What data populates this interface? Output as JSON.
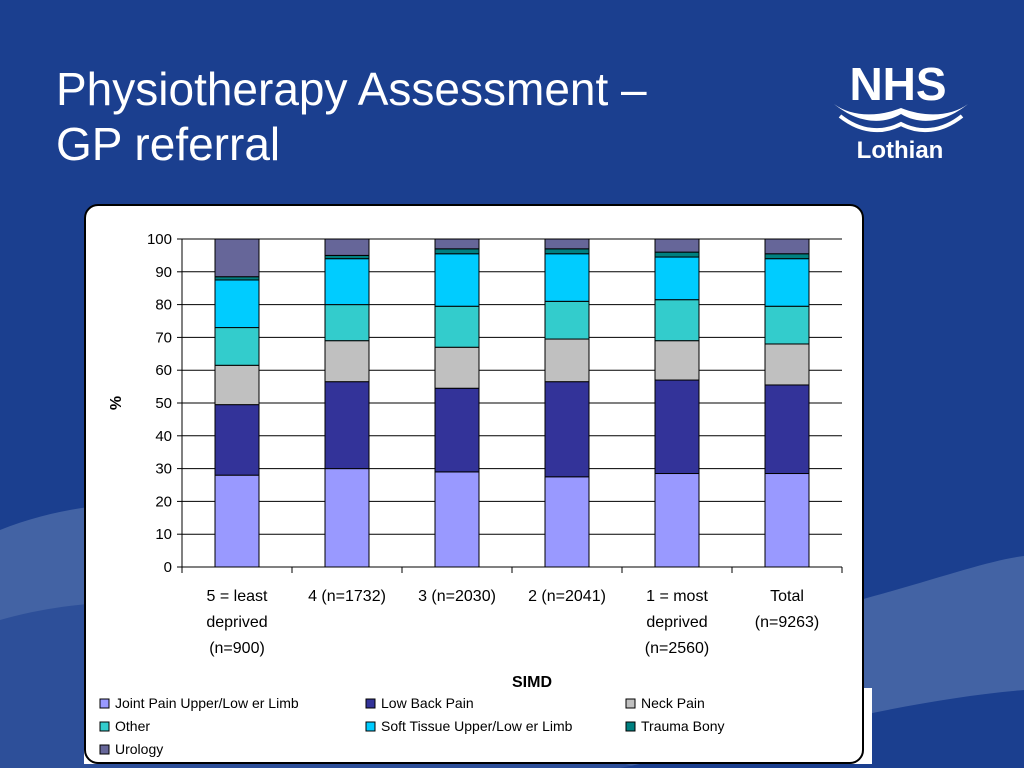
{
  "title_lines": [
    "Physiotherapy Assessment –",
    "GP referral"
  ],
  "logo": {
    "brand": "NHS",
    "sub": "Lothian"
  },
  "colors": {
    "background": "#1b3f8f",
    "wave": "#4a6aa8",
    "Joint Pain Upper/Low er Limb": "#9999ff",
    "Low  Back Pain": "#333399",
    "Neck Pain": "#c0c0c0",
    "Other": "#33cccc",
    "Soft Tissue Upper/Low er Limb": "#00ccff",
    "Trauma Bony": "#008080",
    "Urology": "#666699"
  },
  "chart_data": {
    "type": "bar",
    "stacked": true,
    "xlabel": "SIMD",
    "ylabel": "%",
    "ylim": [
      0,
      100
    ],
    "yticks": [
      0,
      10,
      20,
      30,
      40,
      50,
      60,
      70,
      80,
      90,
      100
    ],
    "grid": true,
    "legend_position": "bottom",
    "categories": [
      [
        "5 = least",
        "deprived",
        "(n=900)"
      ],
      [
        "4 (n=1732)"
      ],
      [
        "3 (n=2030)"
      ],
      [
        "2 (n=2041)"
      ],
      [
        "1 = most",
        "deprived",
        "(n=2560)"
      ],
      [
        "Total",
        "(n=9263)"
      ]
    ],
    "series": [
      {
        "name": "Joint Pain Upper/Low er Limb",
        "values": [
          28,
          30,
          29,
          27.5,
          28.5,
          28.5
        ]
      },
      {
        "name": "Low  Back Pain",
        "values": [
          21.5,
          26.5,
          25.5,
          29,
          28.5,
          27
        ]
      },
      {
        "name": "Neck Pain",
        "values": [
          12,
          12.5,
          12.5,
          13,
          12,
          12.5
        ]
      },
      {
        "name": "Other",
        "values": [
          11.5,
          11,
          12.5,
          11.5,
          12.5,
          11.5
        ]
      },
      {
        "name": "Soft Tissue Upper/Low er Limb",
        "values": [
          14.5,
          14,
          16,
          14.5,
          13,
          14.5
        ]
      },
      {
        "name": "Trauma Bony",
        "values": [
          1,
          1,
          1.5,
          1.5,
          1.5,
          1.5
        ]
      },
      {
        "name": "Urology",
        "values": [
          11.5,
          5,
          3,
          3,
          4,
          4.5
        ]
      }
    ]
  }
}
